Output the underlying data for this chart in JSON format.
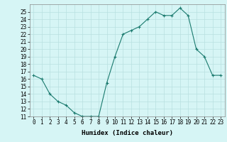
{
  "x": [
    0,
    1,
    2,
    3,
    4,
    5,
    6,
    7,
    8,
    9,
    10,
    11,
    12,
    13,
    14,
    15,
    16,
    17,
    18,
    19,
    20,
    21,
    22,
    23
  ],
  "y": [
    16.5,
    16.0,
    14.0,
    13.0,
    12.5,
    11.5,
    11.0,
    11.0,
    11.0,
    15.5,
    19.0,
    22.0,
    22.5,
    23.0,
    24.0,
    25.0,
    24.5,
    24.5,
    25.5,
    24.5,
    20.0,
    19.0,
    16.5,
    16.5
  ],
  "xlabel": "Humidex (Indice chaleur)",
  "ylabel": "",
  "xlim": [
    -0.5,
    23.5
  ],
  "ylim": [
    11,
    26
  ],
  "yticks": [
    11,
    12,
    13,
    14,
    15,
    16,
    17,
    18,
    19,
    20,
    21,
    22,
    23,
    24,
    25
  ],
  "xtick_labels": [
    "0",
    "1",
    "2",
    "3",
    "4",
    "5",
    "6",
    "7",
    "8",
    "9",
    "10",
    "11",
    "12",
    "13",
    "14",
    "15",
    "16",
    "17",
    "18",
    "19",
    "20",
    "21",
    "22",
    "23"
  ],
  "line_color": "#1a7a6e",
  "marker": "+",
  "bg_color": "#d6f5f5",
  "grid_color": "#b8e0e0",
  "label_fontsize": 6.5,
  "tick_fontsize": 5.5
}
